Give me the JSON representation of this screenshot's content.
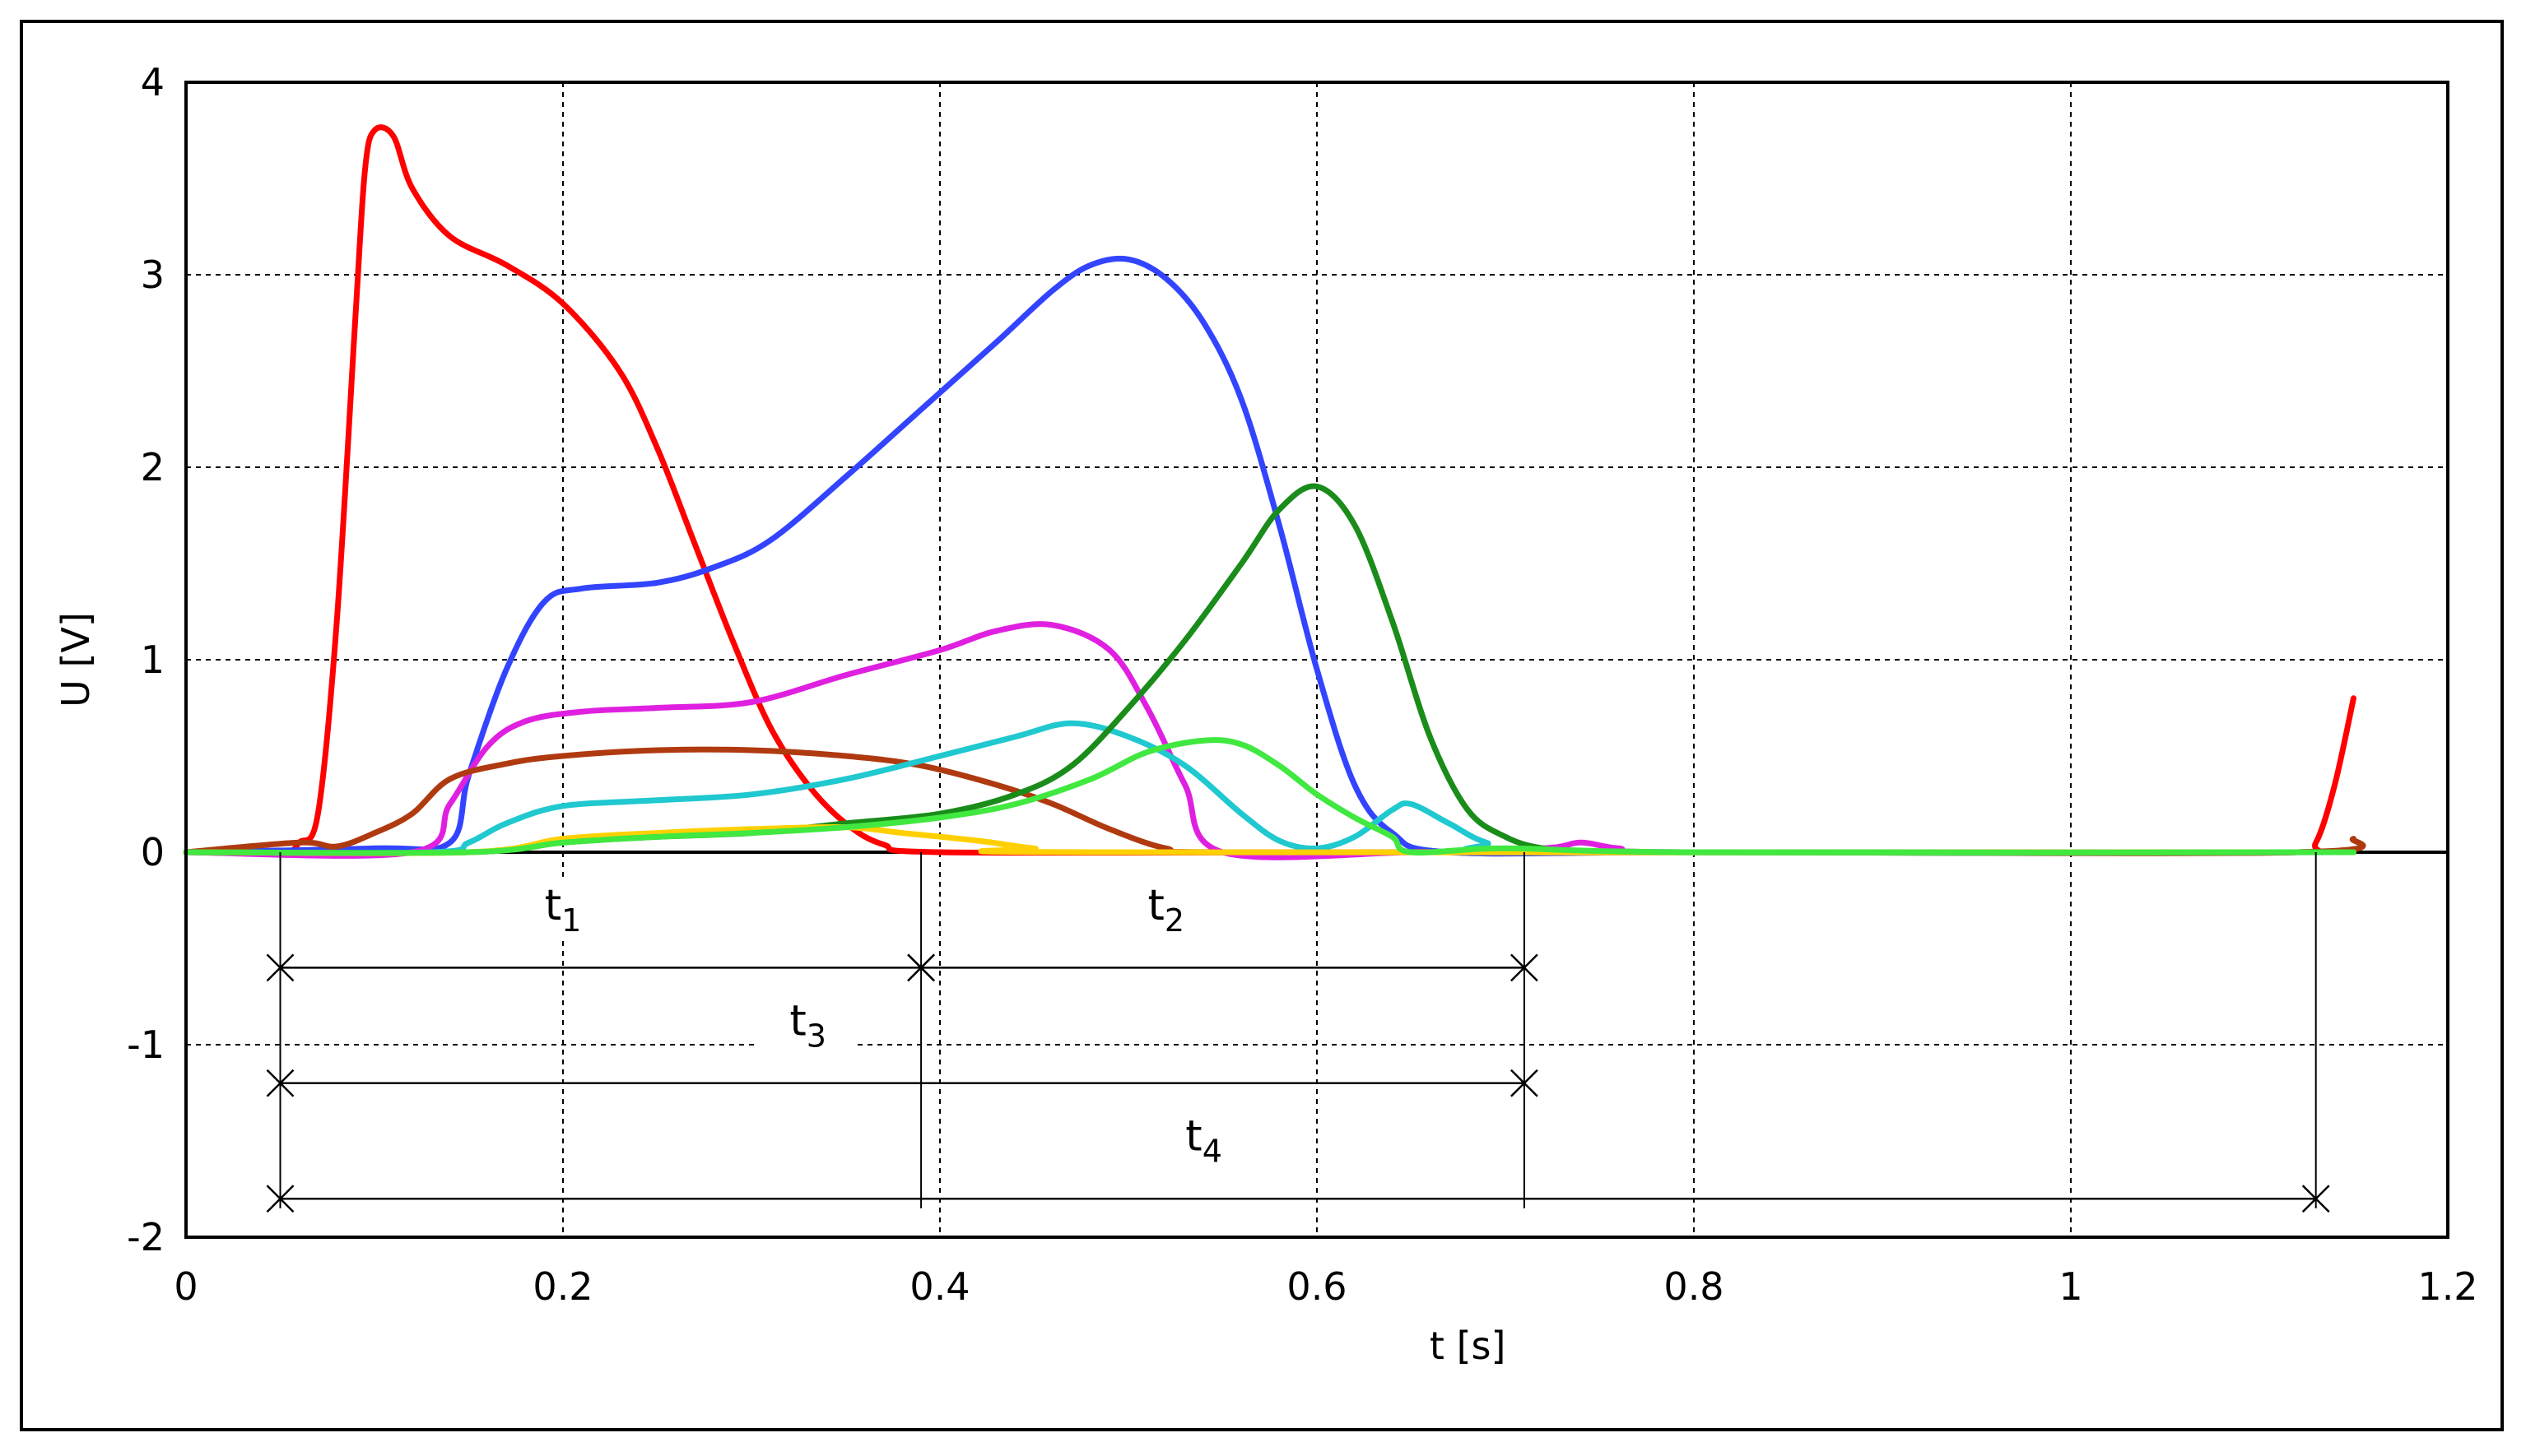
{
  "chart_data": {
    "type": "line",
    "title": "",
    "xlabel": "t [s]",
    "ylabel": "U [V]",
    "xlim": [
      0,
      1.2
    ],
    "ylim": [
      -2,
      4
    ],
    "x_ticks": [
      "0",
      "0.2",
      "0.4",
      "0.6",
      "0.8",
      "1",
      "1.2"
    ],
    "y_ticks": [
      "4",
      "3",
      "2",
      "1",
      "0",
      "-1",
      "-2"
    ],
    "grid": true,
    "legend": "none",
    "series": [
      {
        "color": "#ff0000",
        "points": [
          [
            0,
            0
          ],
          [
            0.05,
            0
          ],
          [
            0.06,
            0.05
          ],
          [
            0.07,
            0.2
          ],
          [
            0.08,
            1.2
          ],
          [
            0.09,
            2.8
          ],
          [
            0.095,
            3.55
          ],
          [
            0.1,
            3.75
          ],
          [
            0.11,
            3.72
          ],
          [
            0.12,
            3.45
          ],
          [
            0.14,
            3.2
          ],
          [
            0.17,
            3.05
          ],
          [
            0.2,
            2.85
          ],
          [
            0.23,
            2.5
          ],
          [
            0.25,
            2.1
          ],
          [
            0.27,
            1.6
          ],
          [
            0.29,
            1.1
          ],
          [
            0.31,
            0.65
          ],
          [
            0.33,
            0.35
          ],
          [
            0.35,
            0.15
          ],
          [
            0.37,
            0.04
          ],
          [
            0.4,
            0
          ],
          [
            0.6,
            0
          ],
          [
            0.8,
            0
          ],
          [
            1.0,
            0
          ],
          [
            1.12,
            0
          ],
          [
            1.13,
            0.05
          ],
          [
            1.14,
            0.35
          ],
          [
            1.15,
            0.8
          ]
        ]
      },
      {
        "color": "#3344ff",
        "points": [
          [
            0,
            0
          ],
          [
            0.1,
            0.02
          ],
          [
            0.14,
            0.05
          ],
          [
            0.15,
            0.4
          ],
          [
            0.17,
            0.95
          ],
          [
            0.19,
            1.3
          ],
          [
            0.21,
            1.37
          ],
          [
            0.25,
            1.4
          ],
          [
            0.28,
            1.48
          ],
          [
            0.31,
            1.62
          ],
          [
            0.35,
            1.95
          ],
          [
            0.39,
            2.3
          ],
          [
            0.43,
            2.65
          ],
          [
            0.46,
            2.92
          ],
          [
            0.48,
            3.05
          ],
          [
            0.5,
            3.08
          ],
          [
            0.52,
            2.98
          ],
          [
            0.54,
            2.75
          ],
          [
            0.56,
            2.35
          ],
          [
            0.58,
            1.7
          ],
          [
            0.6,
            0.95
          ],
          [
            0.62,
            0.35
          ],
          [
            0.64,
            0.1
          ],
          [
            0.67,
            0
          ],
          [
            0.8,
            0
          ],
          [
            1.15,
            0
          ]
        ]
      },
      {
        "color": "#e020e0",
        "points": [
          [
            0,
            0
          ],
          [
            0.12,
            0
          ],
          [
            0.14,
            0.25
          ],
          [
            0.16,
            0.55
          ],
          [
            0.18,
            0.68
          ],
          [
            0.21,
            0.73
          ],
          [
            0.25,
            0.75
          ],
          [
            0.3,
            0.78
          ],
          [
            0.35,
            0.92
          ],
          [
            0.4,
            1.05
          ],
          [
            0.43,
            1.15
          ],
          [
            0.46,
            1.18
          ],
          [
            0.49,
            1.05
          ],
          [
            0.51,
            0.75
          ],
          [
            0.53,
            0.35
          ],
          [
            0.55,
            0
          ],
          [
            0.65,
            0
          ],
          [
            0.72,
            0.02
          ],
          [
            0.74,
            0.05
          ],
          [
            0.76,
            0.02
          ],
          [
            0.8,
            0
          ],
          [
            1.15,
            0
          ]
        ]
      },
      {
        "color": "#b03a10",
        "points": [
          [
            0,
            0
          ],
          [
            0.06,
            0.05
          ],
          [
            0.08,
            0.03
          ],
          [
            0.1,
            0.1
          ],
          [
            0.12,
            0.2
          ],
          [
            0.14,
            0.38
          ],
          [
            0.17,
            0.46
          ],
          [
            0.2,
            0.5
          ],
          [
            0.25,
            0.53
          ],
          [
            0.3,
            0.53
          ],
          [
            0.35,
            0.5
          ],
          [
            0.39,
            0.45
          ],
          [
            0.43,
            0.35
          ],
          [
            0.46,
            0.25
          ],
          [
            0.49,
            0.12
          ],
          [
            0.52,
            0.02
          ],
          [
            0.55,
            0
          ],
          [
            0.8,
            0
          ],
          [
            1.12,
            0
          ],
          [
            1.15,
            0.07
          ]
        ]
      },
      {
        "color": "#20c8d0",
        "points": [
          [
            0,
            0
          ],
          [
            0.13,
            0
          ],
          [
            0.15,
            0.05
          ],
          [
            0.17,
            0.15
          ],
          [
            0.2,
            0.24
          ],
          [
            0.25,
            0.27
          ],
          [
            0.3,
            0.3
          ],
          [
            0.35,
            0.38
          ],
          [
            0.4,
            0.5
          ],
          [
            0.44,
            0.6
          ],
          [
            0.47,
            0.67
          ],
          [
            0.5,
            0.6
          ],
          [
            0.53,
            0.45
          ],
          [
            0.56,
            0.2
          ],
          [
            0.58,
            0.06
          ],
          [
            0.6,
            0.02
          ],
          [
            0.62,
            0.08
          ],
          [
            0.64,
            0.22
          ],
          [
            0.65,
            0.25
          ],
          [
            0.67,
            0.15
          ],
          [
            0.69,
            0.05
          ],
          [
            0.72,
            0
          ],
          [
            1.15,
            0
          ]
        ]
      },
      {
        "color": "#1a8c1a",
        "points": [
          [
            0,
            0
          ],
          [
            0.15,
            0
          ],
          [
            0.2,
            0.05
          ],
          [
            0.25,
            0.08
          ],
          [
            0.3,
            0.1
          ],
          [
            0.35,
            0.15
          ],
          [
            0.4,
            0.2
          ],
          [
            0.44,
            0.3
          ],
          [
            0.47,
            0.45
          ],
          [
            0.5,
            0.75
          ],
          [
            0.53,
            1.1
          ],
          [
            0.56,
            1.5
          ],
          [
            0.58,
            1.78
          ],
          [
            0.6,
            1.9
          ],
          [
            0.62,
            1.7
          ],
          [
            0.64,
            1.2
          ],
          [
            0.66,
            0.6
          ],
          [
            0.68,
            0.22
          ],
          [
            0.7,
            0.08
          ],
          [
            0.72,
            0.02
          ],
          [
            0.75,
            0
          ],
          [
            1.15,
            0
          ]
        ]
      },
      {
        "color": "#ffd000",
        "points": [
          [
            0,
            0
          ],
          [
            0.15,
            0
          ],
          [
            0.2,
            0.07
          ],
          [
            0.25,
            0.1
          ],
          [
            0.3,
            0.12
          ],
          [
            0.35,
            0.13
          ],
          [
            0.38,
            0.1
          ],
          [
            0.42,
            0.06
          ],
          [
            0.45,
            0.02
          ],
          [
            0.48,
            0
          ],
          [
            1.15,
            0
          ]
        ]
      },
      {
        "color": "#40e840",
        "points": [
          [
            0,
            0
          ],
          [
            0.15,
            0
          ],
          [
            0.2,
            0.05
          ],
          [
            0.25,
            0.08
          ],
          [
            0.3,
            0.1
          ],
          [
            0.35,
            0.13
          ],
          [
            0.4,
            0.18
          ],
          [
            0.44,
            0.25
          ],
          [
            0.48,
            0.38
          ],
          [
            0.51,
            0.52
          ],
          [
            0.54,
            0.58
          ],
          [
            0.56,
            0.56
          ],
          [
            0.58,
            0.45
          ],
          [
            0.6,
            0.3
          ],
          [
            0.62,
            0.18
          ],
          [
            0.64,
            0.08
          ],
          [
            0.65,
            0
          ],
          [
            0.7,
            0.02
          ],
          [
            0.8,
            0
          ],
          [
            1.15,
            0
          ]
        ]
      }
    ],
    "annotations": [
      {
        "base": "t",
        "sub": "1",
        "x": [
          0.05,
          0.39
        ],
        "y": -0.6,
        "label_x": 0.2,
        "label_y": -0.35
      },
      {
        "base": "t",
        "sub": "2",
        "x": [
          0.39,
          0.71
        ],
        "y": -0.6,
        "label_x": 0.52,
        "label_y": -0.35
      },
      {
        "base": "t",
        "sub": "3",
        "x": [
          0.05,
          0.71
        ],
        "y": -1.2,
        "label_x": 0.33,
        "label_y": -0.95
      },
      {
        "base": "t",
        "sub": "4",
        "x": [
          0.05,
          1.13
        ],
        "y": -1.8,
        "label_x": 0.54,
        "label_y": -1.55
      }
    ],
    "markers_x": [
      0.05,
      0.39,
      0.71,
      1.13
    ]
  }
}
